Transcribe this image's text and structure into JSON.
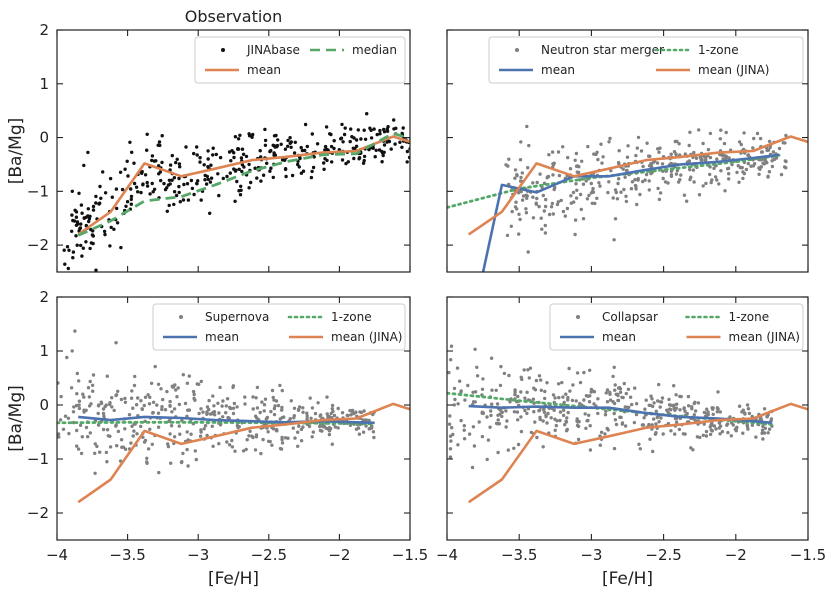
{
  "colors": {
    "blue": "#4C72B0",
    "orange": "#DD8452",
    "green": "#55A868",
    "black": "#111111",
    "grey": "#808080"
  },
  "chart_data": [
    {
      "type": "scatter",
      "panel": "top-left",
      "title": "Observation",
      "xlabel": "",
      "ylabel": "[Ba/Mg]",
      "xlim": [
        -4.0,
        -1.5
      ],
      "ylim": [
        -2.5,
        2.0
      ],
      "xticks": [
        -4.0,
        -3.5,
        -3.0,
        -2.5,
        -2.0,
        -1.5
      ],
      "yticks": [
        -2,
        -1,
        0,
        1,
        2
      ],
      "show_xtick_labels": false,
      "show_ytick_labels": true,
      "scatter": {
        "name": "JINAbase",
        "color": "#111111",
        "count": 420,
        "seed": 11,
        "mean_line": "JINAbase_mean",
        "spread": [
          0.75,
          0.35
        ],
        "xrange": [
          -3.95,
          -1.5
        ]
      },
      "series": [
        {
          "name": "mean",
          "style": "solid",
          "color": "#DD8452",
          "x": [
            -3.85,
            -3.62,
            -3.38,
            -3.12,
            -2.88,
            -2.62,
            -2.38,
            -2.12,
            -1.88,
            -1.62,
            -1.5
          ],
          "y": [
            -1.8,
            -1.38,
            -0.48,
            -0.72,
            -0.58,
            -0.42,
            -0.36,
            -0.28,
            -0.25,
            0.02,
            -0.08
          ]
        },
        {
          "name": "median",
          "style": "dashed",
          "color": "#55A868",
          "x": [
            -3.85,
            -3.62,
            -3.38,
            -3.12,
            -2.88,
            -2.62,
            -2.38,
            -2.12,
            -1.88,
            -1.62,
            -1.5
          ],
          "y": [
            -1.82,
            -1.55,
            -1.18,
            -1.1,
            -0.88,
            -0.62,
            -0.45,
            -0.32,
            -0.3,
            0.08,
            -0.02
          ]
        }
      ],
      "legend": {
        "position": "top-right",
        "items": [
          {
            "label": "JINAbase",
            "kind": "dot",
            "color": "#111111"
          },
          {
            "label": "median",
            "kind": "dashed",
            "color": "#55A868"
          },
          {
            "label": "mean",
            "kind": "solid",
            "color": "#DD8452"
          }
        ]
      }
    },
    {
      "type": "scatter",
      "panel": "top-right",
      "title": "",
      "xlabel": "",
      "ylabel": "",
      "xlim": [
        -4.0,
        -1.5
      ],
      "ylim": [
        -2.5,
        2.0
      ],
      "xticks": [
        -4.0,
        -3.5,
        -3.0,
        -2.5,
        -2.0,
        -1.5
      ],
      "yticks": [
        -2,
        -1,
        0,
        1,
        2
      ],
      "show_xtick_labels": false,
      "show_ytick_labels": false,
      "scatter": {
        "name": "Neutron star merger",
        "color": "#808080",
        "count": 420,
        "seed": 23,
        "mean_line": "NSM_mean",
        "spread": [
          0.9,
          0.25
        ],
        "xrange": [
          -3.6,
          -1.65
        ]
      },
      "series": [
        {
          "name": "1-zone",
          "style": "dotted",
          "color": "#55A868",
          "x": [
            -4.0,
            -3.5,
            -3.0,
            -2.5,
            -2.0,
            -1.7
          ],
          "y": [
            -1.3,
            -0.95,
            -0.75,
            -0.6,
            -0.45,
            -0.33
          ]
        },
        {
          "name": "mean",
          "style": "solid",
          "color": "#4C72B0",
          "x": [
            -3.75,
            -3.62,
            -3.38,
            -3.12,
            -2.88,
            -2.62,
            -2.38,
            -2.12,
            -1.88,
            -1.7
          ],
          "y": [
            -2.5,
            -0.88,
            -1.02,
            -0.72,
            -0.72,
            -0.6,
            -0.5,
            -0.45,
            -0.38,
            -0.32
          ]
        },
        {
          "name": "mean (JINA)",
          "style": "solid",
          "color": "#DD8452",
          "x": [
            -3.85,
            -3.62,
            -3.38,
            -3.12,
            -2.88,
            -2.62,
            -2.38,
            -2.12,
            -1.88,
            -1.62,
            -1.5
          ],
          "y": [
            -1.8,
            -1.38,
            -0.48,
            -0.72,
            -0.58,
            -0.42,
            -0.36,
            -0.28,
            -0.25,
            0.02,
            -0.08
          ]
        }
      ],
      "legend": {
        "position": "top-right",
        "items": [
          {
            "label": "Neutron star merger",
            "kind": "dot",
            "color": "#808080"
          },
          {
            "label": "1-zone",
            "kind": "dotted",
            "color": "#55A868"
          },
          {
            "label": "mean",
            "kind": "solid",
            "color": "#4C72B0"
          },
          {
            "label": "mean (JINA)",
            "kind": "solid",
            "color": "#DD8452"
          }
        ]
      }
    },
    {
      "type": "scatter",
      "panel": "bottom-left",
      "title": "",
      "xlabel": "[Fe/H]",
      "ylabel": "[Ba/Mg]",
      "xlim": [
        -4.0,
        -1.5
      ],
      "ylim": [
        -2.5,
        2.0
      ],
      "xticks": [
        -4.0,
        -3.5,
        -3.0,
        -2.5,
        -2.0,
        -1.5
      ],
      "yticks": [
        -2,
        -1,
        0,
        1,
        2
      ],
      "show_xtick_labels": true,
      "show_ytick_labels": true,
      "scatter": {
        "name": "Supernova",
        "color": "#808080",
        "count": 480,
        "seed": 37,
        "mean_line": "SN_mean",
        "spread": [
          1.0,
          0.12
        ],
        "xrange": [
          -4.0,
          -1.75
        ]
      },
      "series": [
        {
          "name": "1-zone",
          "style": "dotted",
          "color": "#55A868",
          "x": [
            -4.0,
            -3.5,
            -3.0,
            -2.5,
            -2.0,
            -1.75
          ],
          "y": [
            -0.33,
            -0.32,
            -0.32,
            -0.33,
            -0.34,
            -0.35
          ]
        },
        {
          "name": "mean",
          "style": "solid",
          "color": "#4C72B0",
          "x": [
            -3.85,
            -3.62,
            -3.38,
            -3.12,
            -2.88,
            -2.62,
            -2.38,
            -2.12,
            -1.88,
            -1.75
          ],
          "y": [
            -0.22,
            -0.28,
            -0.22,
            -0.24,
            -0.28,
            -0.3,
            -0.32,
            -0.3,
            -0.32,
            -0.33
          ]
        },
        {
          "name": "mean (JINA)",
          "style": "solid",
          "color": "#DD8452",
          "x": [
            -3.85,
            -3.62,
            -3.38,
            -3.12,
            -2.88,
            -2.62,
            -2.38,
            -2.12,
            -1.88,
            -1.62,
            -1.5
          ],
          "y": [
            -1.8,
            -1.38,
            -0.48,
            -0.72,
            -0.58,
            -0.42,
            -0.36,
            -0.28,
            -0.25,
            0.02,
            -0.08
          ]
        }
      ],
      "legend": {
        "position": "top-right",
        "items": [
          {
            "label": "Supernova",
            "kind": "dot",
            "color": "#808080"
          },
          {
            "label": "1-zone",
            "kind": "dotted",
            "color": "#55A868"
          },
          {
            "label": "mean",
            "kind": "solid",
            "color": "#4C72B0"
          },
          {
            "label": "mean (JINA)",
            "kind": "solid",
            "color": "#DD8452"
          }
        ]
      }
    },
    {
      "type": "scatter",
      "panel": "bottom-right",
      "title": "",
      "xlabel": "[Fe/H]",
      "ylabel": "",
      "xlim": [
        -4.0,
        -1.5
      ],
      "ylim": [
        -2.5,
        2.0
      ],
      "xticks": [
        -4.0,
        -3.5,
        -3.0,
        -2.5,
        -2.0,
        -1.5
      ],
      "yticks": [
        -2,
        -1,
        0,
        1,
        2
      ],
      "show_xtick_labels": true,
      "show_ytick_labels": false,
      "scatter": {
        "name": "Collapsar",
        "color": "#808080",
        "count": 480,
        "seed": 53,
        "mean_line": "COL_mean",
        "spread": [
          0.95,
          0.12
        ],
        "xrange": [
          -4.0,
          -1.75
        ]
      },
      "series": [
        {
          "name": "1-zone",
          "style": "dotted",
          "color": "#55A868",
          "x": [
            -4.0,
            -3.5,
            -3.0,
            -2.5,
            -2.0,
            -1.75
          ],
          "y": [
            0.22,
            0.08,
            -0.05,
            -0.18,
            -0.3,
            -0.36
          ]
        },
        {
          "name": "mean",
          "style": "solid",
          "color": "#4C72B0",
          "x": [
            -3.85,
            -3.62,
            -3.38,
            -3.12,
            -2.88,
            -2.62,
            -2.38,
            -2.12,
            -1.88,
            -1.75
          ],
          "y": [
            -0.02,
            -0.05,
            -0.03,
            -0.05,
            -0.05,
            -0.15,
            -0.22,
            -0.25,
            -0.3,
            -0.33
          ]
        },
        {
          "name": "mean (JINA)",
          "style": "solid",
          "color": "#DD8452",
          "x": [
            -3.85,
            -3.62,
            -3.38,
            -3.12,
            -2.88,
            -2.62,
            -2.38,
            -2.12,
            -1.88,
            -1.62,
            -1.5
          ],
          "y": [
            -1.8,
            -1.38,
            -0.48,
            -0.72,
            -0.58,
            -0.42,
            -0.36,
            -0.28,
            -0.25,
            0.02,
            -0.08
          ]
        }
      ],
      "legend": {
        "position": "top-right",
        "items": [
          {
            "label": "Collapsar",
            "kind": "dot",
            "color": "#808080"
          },
          {
            "label": "1-zone",
            "kind": "dotted",
            "color": "#55A868"
          },
          {
            "label": "mean",
            "kind": "solid",
            "color": "#4C72B0"
          },
          {
            "label": "mean (JINA)",
            "kind": "solid",
            "color": "#DD8452"
          }
        ]
      }
    }
  ]
}
